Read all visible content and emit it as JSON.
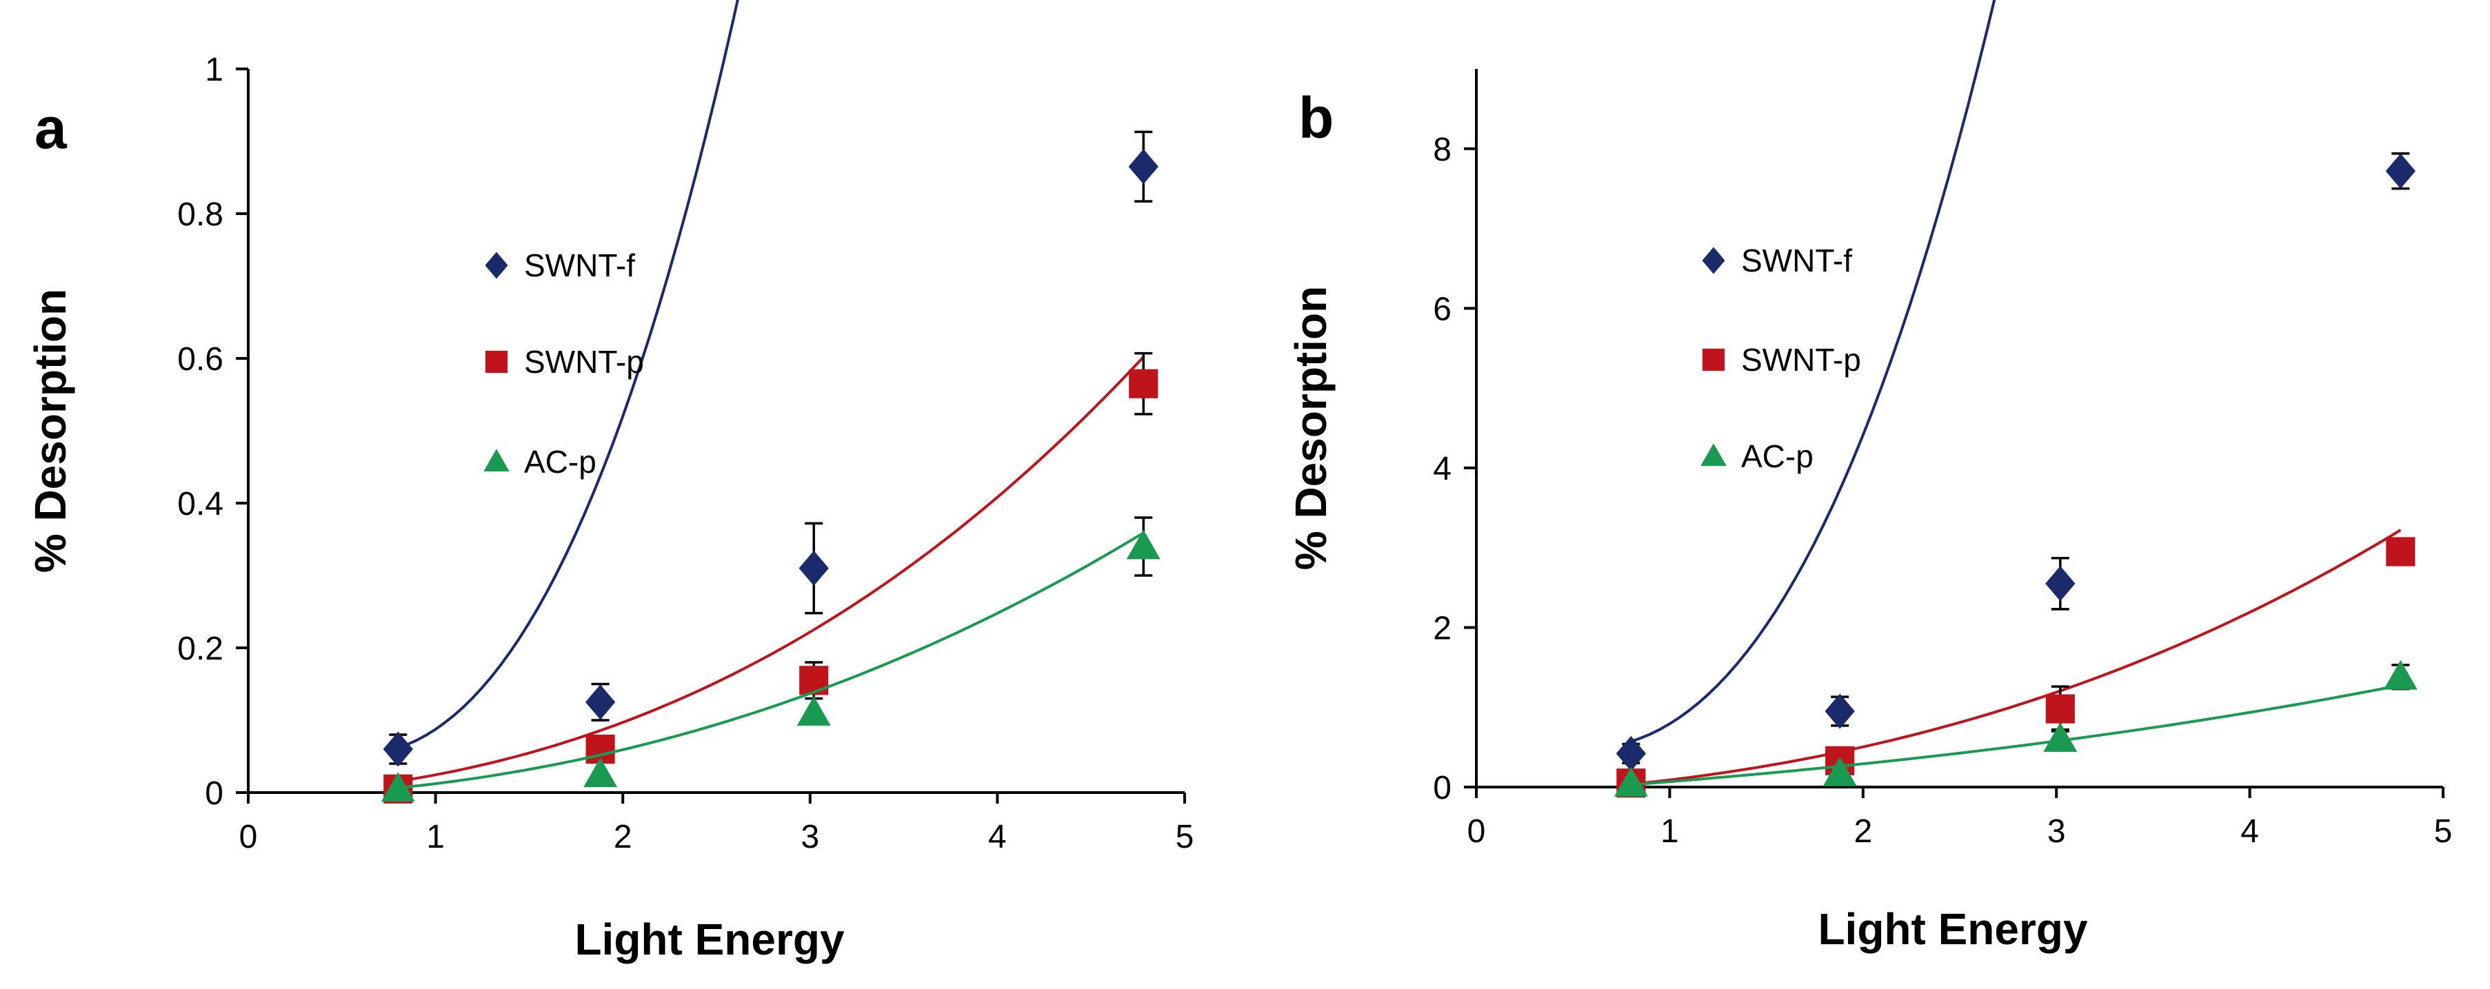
{
  "chart_data": [
    {
      "type": "scatter",
      "panel_label": "a",
      "xlabel": "Light Energy",
      "ylabel": "% Desorption",
      "xlim": [
        0,
        5
      ],
      "ylim": [
        0,
        1
      ],
      "xticks": [
        0,
        1,
        2,
        3,
        4,
        5
      ],
      "yticks": [
        0,
        0.2,
        0.4,
        0.6,
        0.8,
        1
      ],
      "ytick_labels": [
        "0",
        "0.2",
        "0.4",
        "0.6",
        "0.8",
        "1"
      ],
      "xtick_labels": [
        "0",
        "1",
        "2",
        "3",
        "4",
        "5"
      ],
      "legend_position": "upper-left",
      "series": [
        {
          "name": "SWNT-f",
          "marker": "diamond",
          "color": "#1a2a6b",
          "x": [
            0.8,
            1.88,
            3.02,
            4.78
          ],
          "y": [
            0.06,
            0.125,
            0.31,
            0.865
          ],
          "error": [
            0.02,
            0.025,
            0.062,
            0.048
          ],
          "fit": [
            0.1088,
            -0.1826,
            0.1283,
            0.0329
          ]
        },
        {
          "name": "SWNT-p",
          "marker": "square",
          "color": "#c0141c",
          "x": [
            0.8,
            1.88,
            3.02,
            4.78
          ],
          "y": [
            0.005,
            0.06,
            0.155,
            0.565
          ],
          "error": [
            0.0,
            0.0,
            0.025,
            0.042
          ],
          "fit": [
            -0.0046,
            0.0104,
            0.0172,
            0.0015
          ]
        },
        {
          "name": "AC-p",
          "marker": "triangle",
          "color": "#1a9a50",
          "x": [
            0.8,
            1.88,
            3.02,
            4.78
          ],
          "y": [
            0.005,
            0.025,
            0.11,
            0.34
          ],
          "error": [
            0.0,
            0.0,
            0.0,
            0.04
          ],
          "fit": [
            -0.0062,
            0.0051,
            0.013,
            0.0004
          ]
        }
      ]
    },
    {
      "type": "scatter",
      "panel_label": "b",
      "xlabel": "Light Energy",
      "ylabel": "% Desorption",
      "xlim": [
        0,
        5
      ],
      "ylim": [
        0,
        9
      ],
      "xticks": [
        0,
        1,
        2,
        3,
        4,
        5
      ],
      "yticks": [
        0,
        2,
        4,
        6,
        8
      ],
      "ytick_labels": [
        "0",
        "2",
        "4",
        "6",
        "8"
      ],
      "xtick_labels": [
        "0",
        "1",
        "2",
        "3",
        "4",
        "5"
      ],
      "legend_position": "upper-left",
      "series": [
        {
          "name": "SWNT-f",
          "marker": "diamond",
          "color": "#1a2a6b",
          "x": [
            0.8,
            1.88,
            3.02,
            4.78
          ],
          "y": [
            0.42,
            0.95,
            2.55,
            7.72
          ],
          "error": [
            0.12,
            0.18,
            0.32,
            0.22
          ],
          "fit": [
            0.9036,
            -1.4082,
            1.0139,
            0.2837
          ]
        },
        {
          "name": "SWNT-p",
          "marker": "square",
          "color": "#c0141c",
          "x": [
            0.8,
            1.88,
            3.02,
            4.78
          ],
          "y": [
            0.05,
            0.33,
            0.98,
            2.95
          ],
          "error": [
            0.0,
            0.0,
            0.28,
            0.0
          ],
          "fit": [
            -0.1007,
            0.0924,
            0.0897,
            0.0076
          ]
        },
        {
          "name": "AC-p",
          "marker": "triangle",
          "color": "#1a9a50",
          "x": [
            0.8,
            1.88,
            3.02,
            4.78
          ],
          "y": [
            0.04,
            0.17,
            0.6,
            1.38
          ],
          "error": [
            0.0,
            0.0,
            0.12,
            0.15
          ],
          "fit": [
            -0.1093,
            0.158,
            0.0166,
            0.0023
          ]
        }
      ]
    }
  ]
}
